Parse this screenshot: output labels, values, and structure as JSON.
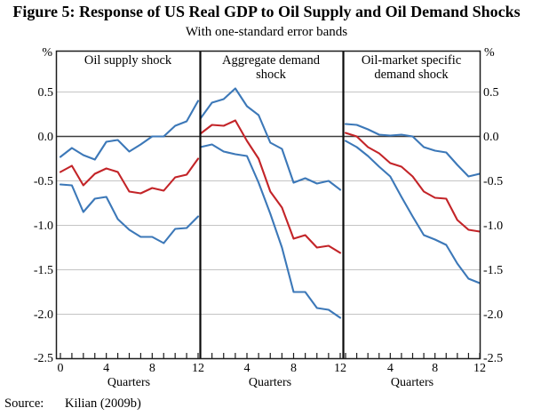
{
  "figure": {
    "title": "Figure 5: Response of US Real GDP to Oil Supply and Oil Demand Shocks",
    "subtitle": "With one-standard error bands",
    "source_label": "Source:",
    "source_value": "Kilian (2009b)"
  },
  "axes": {
    "y_unit": "%",
    "y_ticks": [
      "0.5",
      "0.0",
      "-0.5",
      "-1.0",
      "-1.5",
      "-2.0",
      "-2.5"
    ],
    "x_label": "Quarters"
  },
  "chart_data": {
    "type": "line",
    "x": [
      0,
      1,
      2,
      3,
      4,
      5,
      6,
      7,
      8,
      9,
      10,
      11,
      12
    ],
    "xlabel": "Quarters",
    "ylabel": "%",
    "ylim": [
      -2.5,
      0.96
    ],
    "y_tick_values": [
      0.5,
      0,
      -0.5,
      -1,
      -1.5,
      -2,
      -2.5
    ],
    "grid": true,
    "legend": "none",
    "colors": {
      "irf": "#c32428",
      "band": "#3c78b8"
    },
    "panels": [
      {
        "title": "Oil supply shock",
        "title_lines": [
          "Oil supply shock"
        ],
        "x_ticks": [
          {
            "value": 0,
            "label": "0"
          },
          {
            "value": 4,
            "label": "4"
          },
          {
            "value": 8,
            "label": "8"
          },
          {
            "value": 12,
            "label": "12"
          }
        ],
        "series": [
          {
            "name": "upper one-standard-error band",
            "color_key": "band",
            "values": [
              -0.23,
              -0.13,
              -0.21,
              -0.26,
              -0.06,
              -0.04,
              -0.17,
              -0.09,
              0.0,
              0.0,
              0.12,
              0.17,
              0.4
            ]
          },
          {
            "name": "response of real GDP",
            "color_key": "irf",
            "values": [
              -0.4,
              -0.33,
              -0.55,
              -0.42,
              -0.36,
              -0.4,
              -0.62,
              -0.64,
              -0.58,
              -0.61,
              -0.46,
              -0.43,
              -0.25
            ]
          },
          {
            "name": "lower one-standard-error band",
            "color_key": "band",
            "values": [
              -0.54,
              -0.55,
              -0.85,
              -0.7,
              -0.68,
              -0.93,
              -1.05,
              -1.13,
              -1.13,
              -1.2,
              -1.04,
              -1.03,
              -0.9
            ]
          }
        ]
      },
      {
        "title": "Aggregate demand shock",
        "title_lines": [
          "Aggregate demand",
          "shock"
        ],
        "x_ticks": [
          {
            "value": 4,
            "label": "4"
          },
          {
            "value": 8,
            "label": "8"
          },
          {
            "value": 12,
            "label": "12"
          }
        ],
        "series": [
          {
            "name": "upper one-standard-error band",
            "color_key": "band",
            "values": [
              0.2,
              0.38,
              0.42,
              0.54,
              0.34,
              0.24,
              -0.07,
              -0.14,
              -0.52,
              -0.47,
              -0.53,
              -0.5,
              -0.6
            ]
          },
          {
            "name": "response of real GDP",
            "color_key": "irf",
            "values": [
              0.03,
              0.13,
              0.12,
              0.18,
              -0.05,
              -0.25,
              -0.62,
              -0.8,
              -1.15,
              -1.11,
              -1.25,
              -1.23,
              -1.31
            ]
          },
          {
            "name": "lower one-standard-error band",
            "color_key": "band",
            "values": [
              -0.12,
              -0.09,
              -0.17,
              -0.2,
              -0.22,
              -0.52,
              -0.87,
              -1.25,
              -1.75,
              -1.75,
              -1.93,
              -1.95,
              -2.04
            ]
          }
        ]
      },
      {
        "title": "Oil-market specific demand shock",
        "title_lines": [
          "Oil-market specific",
          "demand shock"
        ],
        "x_ticks": [
          {
            "value": 4,
            "label": "4"
          },
          {
            "value": 8,
            "label": "8"
          },
          {
            "value": 12,
            "label": "12"
          }
        ],
        "series": [
          {
            "name": "upper one-standard-error band",
            "color_key": "band",
            "values": [
              0.14,
              0.13,
              0.08,
              0.02,
              0.01,
              0.02,
              0.0,
              -0.12,
              -0.16,
              -0.18,
              -0.32,
              -0.45,
              -0.42
            ]
          },
          {
            "name": "response of real GDP",
            "color_key": "irf",
            "values": [
              0.04,
              0.0,
              -0.12,
              -0.19,
              -0.3,
              -0.34,
              -0.45,
              -0.62,
              -0.69,
              -0.7,
              -0.94,
              -1.05,
              -1.07
            ]
          },
          {
            "name": "lower one-standard-error band",
            "color_key": "band",
            "values": [
              -0.05,
              -0.12,
              -0.22,
              -0.34,
              -0.45,
              -0.68,
              -0.9,
              -1.11,
              -1.16,
              -1.22,
              -1.43,
              -1.6,
              -1.65
            ]
          }
        ]
      }
    ]
  }
}
